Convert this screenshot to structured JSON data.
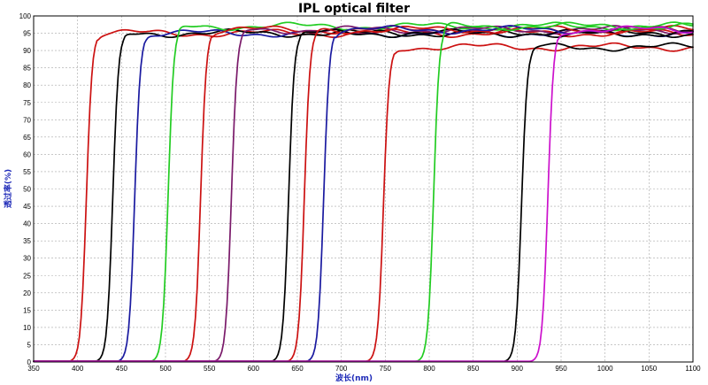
{
  "chart_data": {
    "type": "line",
    "title": "IPL optical filter",
    "xlabel": "波长(nm)",
    "ylabel": "透过率(%)",
    "xlim": [
      350,
      1100
    ],
    "ylim": [
      0,
      100
    ],
    "x_ticks": [
      350,
      400,
      450,
      500,
      550,
      600,
      650,
      700,
      750,
      800,
      850,
      900,
      950,
      1000,
      1050,
      1100
    ],
    "y_ticks": [
      0,
      5,
      10,
      15,
      20,
      25,
      30,
      35,
      40,
      45,
      50,
      55,
      60,
      65,
      70,
      75,
      80,
      85,
      90,
      95,
      100
    ],
    "grid": true,
    "legend": "none",
    "series": [
      {
        "cut_on_nm": 410,
        "plateau_pct": 95,
        "color": "#cc1111"
      },
      {
        "cut_on_nm": 440,
        "plateau_pct": 95,
        "color": "#000000"
      },
      {
        "cut_on_nm": 465,
        "plateau_pct": 95,
        "color": "#1a1aa0"
      },
      {
        "cut_on_nm": 503,
        "plateau_pct": 97,
        "color": "#22cc22"
      },
      {
        "cut_on_nm": 540,
        "plateau_pct": 96,
        "color": "#cc1111"
      },
      {
        "cut_on_nm": 575,
        "plateau_pct": 96,
        "color": "#7a1a6a"
      },
      {
        "cut_on_nm": 640,
        "plateau_pct": 95,
        "color": "#000000"
      },
      {
        "cut_on_nm": 658,
        "plateau_pct": 96,
        "color": "#cc1111"
      },
      {
        "cut_on_nm": 680,
        "plateau_pct": 96,
        "color": "#1a1aa0"
      },
      {
        "cut_on_nm": 748,
        "plateau_pct": 91,
        "color": "#cc1111"
      },
      {
        "cut_on_nm": 805,
        "plateau_pct": 97,
        "color": "#22cc22"
      },
      {
        "cut_on_nm": 905,
        "plateau_pct": 91,
        "color": "#000000"
      },
      {
        "cut_on_nm": 935,
        "plateau_pct": 96,
        "color": "#cc11cc"
      }
    ]
  }
}
